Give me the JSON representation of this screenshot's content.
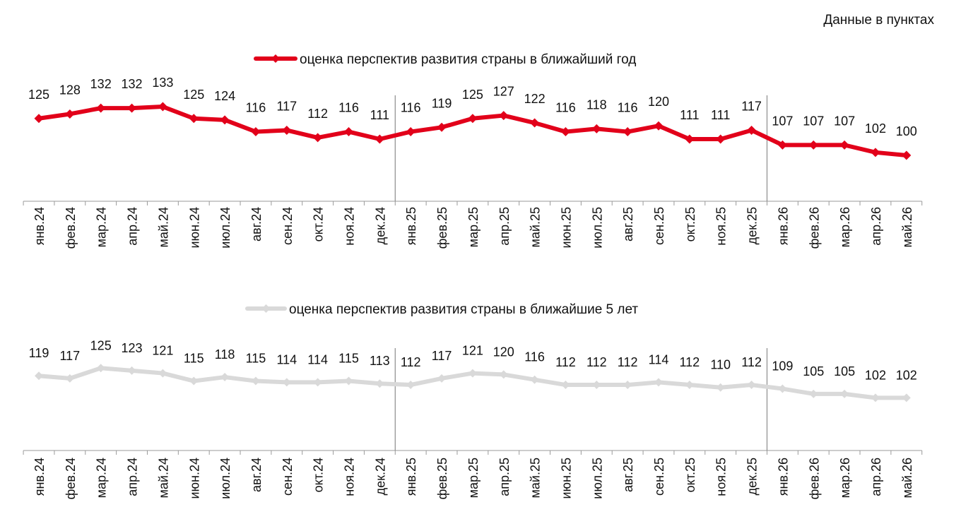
{
  "header": {
    "units_note": "Данные в пунктах"
  },
  "chart_data": [
    {
      "type": "line",
      "categories": [
        "янв.24",
        "фев.24",
        "мар.24",
        "апр.24",
        "май.24",
        "июн.24",
        "июл.24",
        "авг.24",
        "сен.24",
        "окт.24",
        "ноя.24",
        "дек.24",
        "янв.25",
        "фев.25",
        "мар.25",
        "апр.25",
        "май.25",
        "июн.25",
        "июл.25",
        "авг.25",
        "сен.25",
        "окт.25",
        "ноя.25",
        "дек.25",
        "янв.26",
        "фев.26",
        "мар.26",
        "апр.26",
        "май.26"
      ],
      "series": [
        {
          "name": "оценка перспектив развития страны в ближайший год",
          "color": "#e2001a",
          "values": [
            125,
            128,
            132,
            132,
            133,
            125,
            124,
            116,
            117,
            112,
            116,
            111,
            116,
            119,
            125,
            127,
            122,
            116,
            118,
            116,
            120,
            111,
            111,
            117,
            107,
            107,
            107,
            102,
            100
          ]
        }
      ],
      "legend_position": "top",
      "year_separators_after": [
        "дек.24",
        "дек.25"
      ],
      "grid": false
    },
    {
      "type": "line",
      "categories": [
        "янв.24",
        "фев.24",
        "мар.24",
        "апр.24",
        "май.24",
        "июн.24",
        "июл.24",
        "авг.24",
        "сен.24",
        "окт.24",
        "ноя.24",
        "дек.24",
        "янв.25",
        "фев.25",
        "мар.25",
        "апр.25",
        "май.25",
        "июн.25",
        "июл.25",
        "авг.25",
        "сен.25",
        "окт.25",
        "ноя.25",
        "дек.25",
        "янв.26",
        "фев.26",
        "мар.26",
        "апр.26",
        "май.26"
      ],
      "series": [
        {
          "name": "оценка перспектив развития страны в ближайшие 5 лет",
          "color": "#d9d9d9",
          "values": [
            119,
            117,
            125,
            123,
            121,
            115,
            118,
            115,
            114,
            114,
            115,
            113,
            112,
            117,
            121,
            120,
            116,
            112,
            112,
            112,
            114,
            112,
            110,
            112,
            109,
            105,
            105,
            102,
            102
          ]
        }
      ],
      "legend_position": "top",
      "year_separators_after": [
        "дек.24",
        "дек.25"
      ],
      "grid": false
    }
  ]
}
